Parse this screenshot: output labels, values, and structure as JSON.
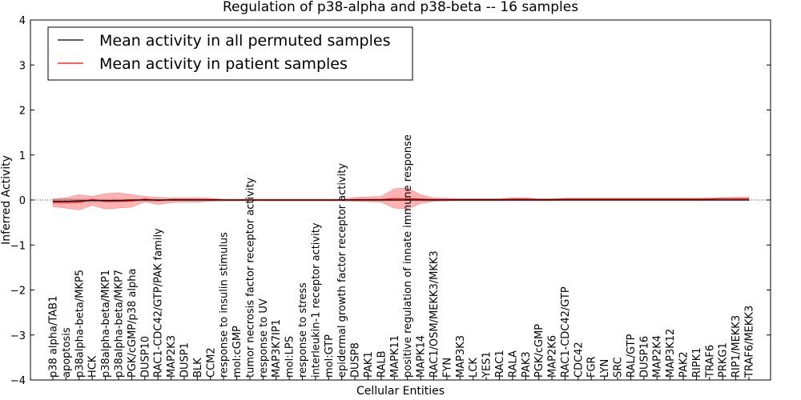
{
  "chart_data": {
    "type": "line",
    "title": "Regulation of p38-alpha and p38-beta -- 16 samples",
    "xlabel": "Cellular Entities",
    "ylabel": "Inferred Activity",
    "ylim": [
      -4,
      4
    ],
    "yticks": [
      "4",
      "3",
      "2",
      "1",
      "0",
      "−1",
      "−2",
      "−3",
      "−4"
    ],
    "ytick_values": [
      4,
      3,
      2,
      1,
      0,
      -1,
      -2,
      -3,
      -4
    ],
    "grid": false,
    "legend_position": "upper-left",
    "categories": [
      "p38 alpha/TAB1",
      "apoptosis",
      "p38alpha-beta/MKP5",
      "HCK",
      "p38alpha-beta/MKP1",
      "p38alpha-beta/MKP7",
      "PGK/cGMP/p38 alpha",
      "DUSP10",
      "RAC1-CDC42/GTP/PAK family",
      "MAP2K3",
      "DUSP1",
      "BLK",
      "CCM2",
      "response to insulin stimulus",
      "mol:cGMP",
      "tumor necrosis factor receptor activity",
      "response to UV",
      "MAP3K7IP1",
      "mol:LPS",
      "response to stress",
      "interleukin-1 receptor activity",
      "mol:GTP",
      "epidermal growth factor receptor activity",
      "DUSP8",
      "PAK1",
      "RALB",
      "MAPK11",
      "positive regulation of innate immune response",
      "MAPK14",
      "RAC1/OSM/MEKK3/MKK3",
      "FYN",
      "MAP3K3",
      "LCK",
      "YES1",
      "RAC1",
      "RALA",
      "PAK3",
      "PGK/cGMP",
      "MAP2K6",
      "RAC1-CDC42/GTP",
      "CDC42",
      "FGR",
      "LYN",
      "SRC",
      "RAL/GTP",
      "DUSP16",
      "MAP2K4",
      "MAP3K12",
      "PAK2",
      "RIPK1",
      "TRAF6",
      "PRKG1",
      "RIP1/MEKK3",
      "TRAF6/MEKK3"
    ],
    "series": [
      {
        "name": "Mean activity in all permuted samples",
        "color": "#000000",
        "values": [
          -0.03,
          -0.03,
          -0.02,
          -0.01,
          -0.01,
          -0.01,
          0,
          0,
          0,
          0,
          0,
          0,
          0,
          0,
          0,
          0,
          0,
          0,
          0,
          0,
          0,
          0,
          0,
          0,
          0,
          0,
          0,
          0,
          0,
          0,
          0,
          0,
          0,
          0,
          0,
          0,
          0,
          0,
          0,
          0,
          0,
          0,
          0,
          0,
          0,
          0,
          0,
          0,
          0,
          0,
          0,
          0,
          0,
          0
        ],
        "band_upper": [
          0.03,
          0.03,
          0.02,
          0.02,
          0.02,
          0.02,
          0.02,
          0.02,
          0.02,
          0.01,
          0.01,
          0.01,
          0.01,
          0.01,
          0.01,
          0.01,
          0.01,
          0.01,
          0.01,
          0.01,
          0.01,
          0.01,
          0.01,
          0.01,
          0.01,
          0.01,
          0.01,
          0.01,
          0.01,
          0.01,
          0.01,
          0.01,
          0.01,
          0.01,
          0.01,
          0.01,
          0.01,
          0.01,
          0.01,
          0.01,
          0.01,
          0.01,
          0.01,
          0.01,
          0.01,
          0.01,
          0.01,
          0.01,
          0.01,
          0.01,
          0.01,
          0.01,
          0.01,
          0.01
        ],
        "band_lower": [
          -0.08,
          -0.08,
          -0.06,
          -0.05,
          -0.05,
          -0.04,
          -0.03,
          -0.03,
          -0.03,
          -0.02,
          -0.02,
          -0.02,
          -0.02,
          -0.02,
          -0.02,
          -0.02,
          -0.02,
          -0.02,
          -0.02,
          -0.02,
          -0.02,
          -0.02,
          -0.02,
          -0.02,
          -0.02,
          -0.02,
          -0.02,
          -0.02,
          -0.02,
          -0.02,
          -0.02,
          -0.02,
          -0.02,
          -0.02,
          -0.02,
          -0.02,
          -0.02,
          -0.02,
          -0.02,
          -0.02,
          -0.02,
          -0.02,
          -0.02,
          -0.02,
          -0.02,
          -0.02,
          -0.02,
          -0.02,
          -0.02,
          -0.02,
          -0.02,
          -0.02,
          -0.02,
          -0.02
        ]
      },
      {
        "name": "Mean activity in patient samples",
        "color": "#ff0000",
        "values": [
          -0.05,
          -0.05,
          -0.05,
          0.01,
          -0.03,
          -0.03,
          -0.02,
          0.02,
          -0.01,
          0.01,
          0.01,
          0.01,
          0.01,
          0,
          0,
          0,
          0,
          0,
          0,
          0,
          0,
          0,
          0,
          0.01,
          0.01,
          0.01,
          0.03,
          0.03,
          0.02,
          0.01,
          0.01,
          0.01,
          0.01,
          0.01,
          0.01,
          0.02,
          0.02,
          0.01,
          0.01,
          0.02,
          0.02,
          0.02,
          0.02,
          0.02,
          0.02,
          0.02,
          0.02,
          0.02,
          0.02,
          0.02,
          0.02,
          0.03,
          0.03,
          0.03
        ],
        "band_upper": [
          0.02,
          0.05,
          0.12,
          0.08,
          0.14,
          0.16,
          0.12,
          0.08,
          0.06,
          0.05,
          0.05,
          0.05,
          0.04,
          0.02,
          0.02,
          0.02,
          0.02,
          0.02,
          0.02,
          0.02,
          0.02,
          0.02,
          0.02,
          0.06,
          0.07,
          0.08,
          0.25,
          0.27,
          0.12,
          0.05,
          0.04,
          0.03,
          0.03,
          0.03,
          0.03,
          0.05,
          0.05,
          0.03,
          0.03,
          0.04,
          0.04,
          0.04,
          0.04,
          0.04,
          0.04,
          0.04,
          0.04,
          0.04,
          0.04,
          0.04,
          0.05,
          0.05,
          0.06,
          0.06
        ],
        "band_lower": [
          -0.15,
          -0.18,
          -0.22,
          -0.12,
          -0.2,
          -0.18,
          -0.16,
          -0.04,
          -0.1,
          -0.06,
          -0.05,
          -0.05,
          -0.03,
          -0.02,
          -0.02,
          -0.02,
          -0.02,
          -0.02,
          -0.02,
          -0.02,
          -0.02,
          -0.02,
          -0.02,
          -0.03,
          -0.04,
          -0.05,
          -0.18,
          -0.2,
          -0.08,
          -0.03,
          -0.02,
          -0.01,
          -0.01,
          -0.01,
          -0.01,
          -0.01,
          -0.01,
          -0.01,
          -0.01,
          0,
          0,
          0,
          0,
          0,
          0,
          0,
          0,
          0,
          0,
          0,
          0,
          0,
          0.01,
          0.01
        ]
      }
    ]
  }
}
